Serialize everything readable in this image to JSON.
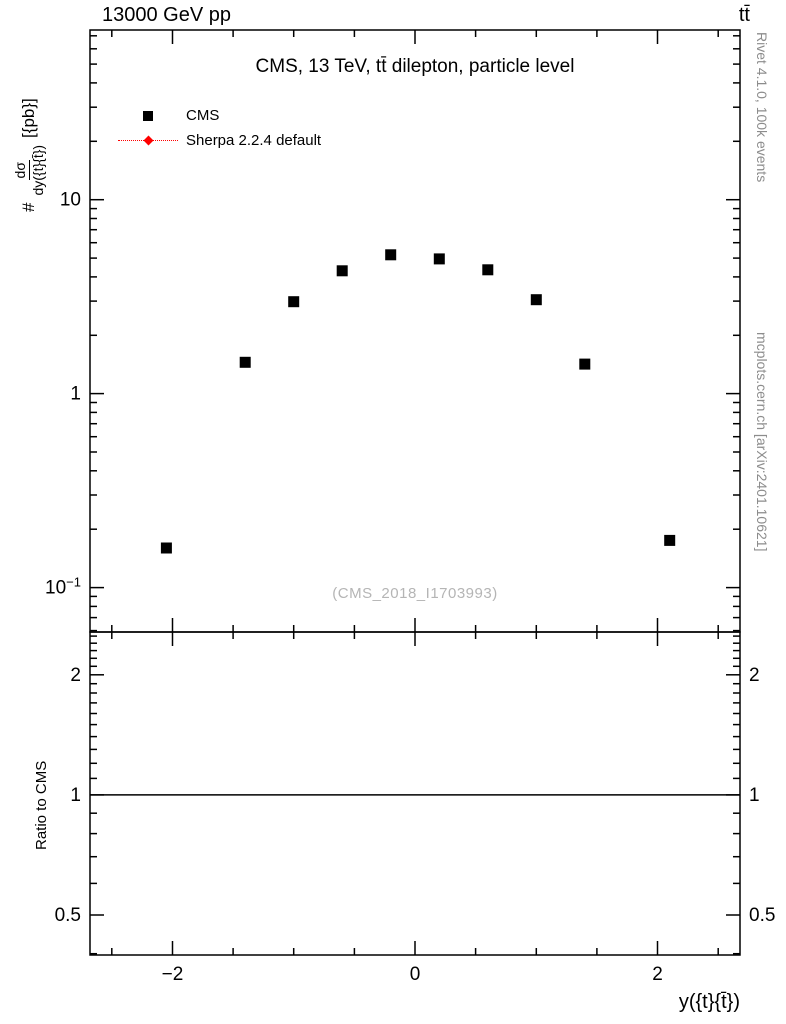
{
  "header": {
    "beam": "13000 GeV pp",
    "process": "tt̄"
  },
  "plot": {
    "title": "CMS, 13 TeV, tt̄ dilepton, particle level",
    "watermark": "(CMS_2018_I1703993)"
  },
  "legend": {
    "items": [
      {
        "label": "CMS",
        "marker": "square",
        "color": "#000000"
      },
      {
        "label": "Sherpa 2.2.4 default",
        "marker": "diamond",
        "color": "#ff0000",
        "line": "dotted"
      }
    ]
  },
  "axes": {
    "x_title": "y({t}{t̄})",
    "y_title": {
      "prefix": "#",
      "numerator": "dσ",
      "denominator": "dy({t}{t̄})",
      "suffix": "[{pb}]"
    },
    "ratio_title": "Ratio to CMS"
  },
  "credits": {
    "generator": "Rivet 4.1.0, 100k events",
    "site": "mcplots.cern.ch [arXiv:2401.10621]"
  },
  "chart_data": {
    "type": "scatter",
    "title": "CMS, 13 TeV, tt̄ dilepton, particle level",
    "xlabel": "y({t}{t̄})",
    "ylabel": "# dσ/dy({t}{t̄}) [{pb}]",
    "xlim": [
      -2.68,
      2.68
    ],
    "x_ticks": [
      -2,
      0,
      2
    ],
    "x_minor_step": 0.5,
    "grid": false,
    "legend_position": "top-left",
    "main": {
      "yscale": "log",
      "ylim": [
        0.059,
        75
      ],
      "y_ticks": [
        0.1,
        1,
        10
      ]
    },
    "ratio": {
      "yscale": "log",
      "ylim": [
        0.397,
        2.56
      ],
      "y_ticks": [
        0.5,
        1,
        2
      ],
      "ylabel": "Ratio to CMS",
      "reference_line": 1.0
    },
    "series": [
      {
        "name": "CMS",
        "marker": "square",
        "color": "#000000",
        "x": [
          -2.05,
          -1.4,
          -1.0,
          -0.6,
          -0.2,
          0.2,
          0.6,
          1.0,
          1.4,
          2.1
        ],
        "y": [
          0.16,
          1.45,
          2.98,
          4.3,
          5.2,
          4.95,
          4.35,
          3.05,
          1.42,
          0.175
        ]
      },
      {
        "name": "Sherpa 2.2.4 default",
        "marker": "diamond",
        "color": "#ff0000",
        "x": [],
        "y": []
      }
    ]
  }
}
